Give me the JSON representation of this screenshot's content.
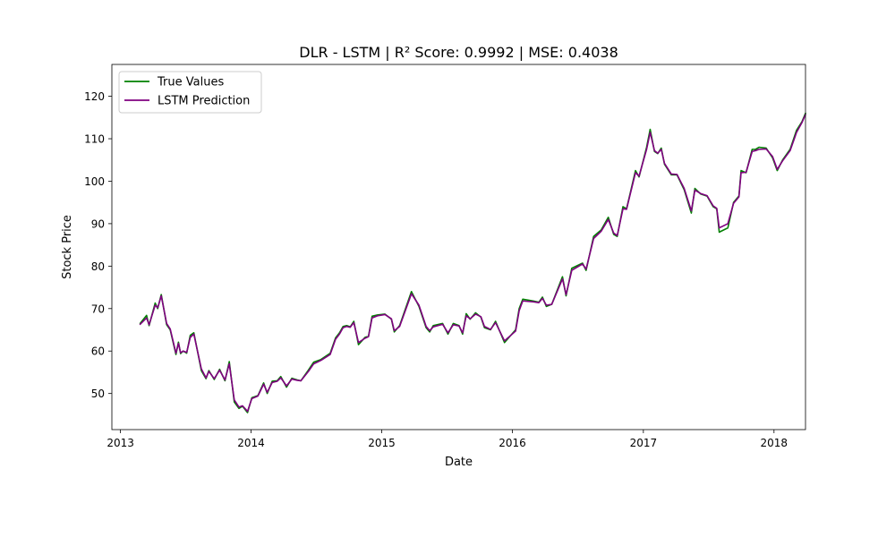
{
  "chart_data": {
    "type": "line",
    "title": "DLR - LSTM | R² Score: 0.9992 | MSE: 0.4038",
    "xlabel": "Date",
    "ylabel": "Stock Price",
    "xlim": [
      "2012-12-08",
      "2018-03-30"
    ],
    "ylim": [
      41.5,
      127.5
    ],
    "x_ticks": [
      "2013",
      "2014",
      "2015",
      "2016",
      "2017",
      "2018"
    ],
    "y_ticks": [
      50,
      60,
      70,
      80,
      90,
      100,
      110,
      120
    ],
    "grid": false,
    "legend": "top-left",
    "colors": {
      "true_values": "#008000",
      "lstm_prediction": "#800080"
    },
    "series": [
      {
        "name": "True Values",
        "color": "#008000",
        "points": [
          [
            "2013-02-25",
            66.5
          ],
          [
            "2013-03-15",
            68.4
          ],
          [
            "2013-03-22",
            66.0
          ],
          [
            "2013-04-08",
            71.3
          ],
          [
            "2013-04-15",
            70.0
          ],
          [
            "2013-04-25",
            73.3
          ],
          [
            "2013-05-10",
            66.2
          ],
          [
            "2013-05-20",
            65.0
          ],
          [
            "2013-06-05",
            59.2
          ],
          [
            "2013-06-12",
            62.1
          ],
          [
            "2013-06-18",
            59.4
          ],
          [
            "2013-06-25",
            60.0
          ],
          [
            "2013-07-05",
            59.5
          ],
          [
            "2013-07-15",
            63.7
          ],
          [
            "2013-07-25",
            64.3
          ],
          [
            "2013-08-15",
            55.4
          ],
          [
            "2013-08-28",
            53.5
          ],
          [
            "2013-09-05",
            55.4
          ],
          [
            "2013-09-20",
            53.3
          ],
          [
            "2013-10-05",
            55.7
          ],
          [
            "2013-10-20",
            53.0
          ],
          [
            "2013-11-01",
            57.5
          ],
          [
            "2013-11-15",
            48.0
          ],
          [
            "2013-11-28",
            46.5
          ],
          [
            "2013-12-08",
            47.0
          ],
          [
            "2013-12-22",
            45.5
          ],
          [
            "2014-01-03",
            49.0
          ],
          [
            "2014-01-20",
            49.5
          ],
          [
            "2014-02-05",
            52.5
          ],
          [
            "2014-02-15",
            50.0
          ],
          [
            "2014-03-01",
            52.9
          ],
          [
            "2014-03-15",
            53.0
          ],
          [
            "2014-03-25",
            54.0
          ],
          [
            "2014-04-10",
            51.5
          ],
          [
            "2014-04-25",
            53.6
          ],
          [
            "2014-05-10",
            53.2
          ],
          [
            "2014-05-20",
            53.0
          ],
          [
            "2014-06-10",
            55.5
          ],
          [
            "2014-06-25",
            57.4
          ],
          [
            "2014-07-15",
            58.0
          ],
          [
            "2014-08-10",
            59.5
          ],
          [
            "2014-08-25",
            63.1
          ],
          [
            "2014-09-05",
            64.3
          ],
          [
            "2014-09-15",
            65.8
          ],
          [
            "2014-09-25",
            66.0
          ],
          [
            "2014-10-05",
            65.7
          ],
          [
            "2014-10-15",
            67.0
          ],
          [
            "2014-10-28",
            61.5
          ],
          [
            "2014-11-15",
            63.2
          ],
          [
            "2014-11-25",
            63.5
          ],
          [
            "2014-12-05",
            68.2
          ],
          [
            "2014-12-20",
            68.5
          ],
          [
            "2015-01-10",
            68.7
          ],
          [
            "2015-01-28",
            67.5
          ],
          [
            "2015-02-05",
            64.5
          ],
          [
            "2015-02-20",
            66.0
          ],
          [
            "2015-03-25",
            74.0
          ],
          [
            "2015-04-15",
            70.5
          ],
          [
            "2015-05-05",
            65.5
          ],
          [
            "2015-05-15",
            64.5
          ],
          [
            "2015-05-25",
            66.0
          ],
          [
            "2015-06-20",
            66.5
          ],
          [
            "2015-07-05",
            64.0
          ],
          [
            "2015-07-20",
            66.5
          ],
          [
            "2015-08-05",
            66.0
          ],
          [
            "2015-08-15",
            64.0
          ],
          [
            "2015-08-25",
            68.8
          ],
          [
            "2015-09-05",
            67.5
          ],
          [
            "2015-09-20",
            69.0
          ],
          [
            "2015-10-05",
            68.0
          ],
          [
            "2015-10-15",
            65.5
          ],
          [
            "2015-11-01",
            65.0
          ],
          [
            "2015-11-15",
            67.0
          ],
          [
            "2015-12-10",
            62.0
          ],
          [
            "2016-01-10",
            65.0
          ],
          [
            "2016-01-20",
            70.0
          ],
          [
            "2016-01-30",
            72.2
          ],
          [
            "2016-02-28",
            71.8
          ],
          [
            "2016-03-15",
            71.5
          ],
          [
            "2016-03-25",
            72.7
          ],
          [
            "2016-04-05",
            70.5
          ],
          [
            "2016-04-20",
            71.0
          ],
          [
            "2016-05-20",
            77.5
          ],
          [
            "2016-05-30",
            73.0
          ],
          [
            "2016-06-15",
            79.5
          ],
          [
            "2016-07-15",
            80.7
          ],
          [
            "2016-07-25",
            79.0
          ],
          [
            "2016-08-15",
            87.0
          ],
          [
            "2016-09-05",
            88.5
          ],
          [
            "2016-09-25",
            91.5
          ],
          [
            "2016-10-10",
            87.5
          ],
          [
            "2016-10-20",
            87.0
          ],
          [
            "2016-11-05",
            94.0
          ],
          [
            "2016-11-15",
            93.5
          ],
          [
            "2016-12-10",
            102.5
          ],
          [
            "2016-12-20",
            101.0
          ],
          [
            "2017-01-10",
            108.0
          ],
          [
            "2017-01-20",
            112.2
          ],
          [
            "2017-02-01",
            107.0
          ],
          [
            "2017-02-10",
            106.5
          ],
          [
            "2017-02-20",
            107.8
          ],
          [
            "2017-03-01",
            104.0
          ],
          [
            "2017-03-20",
            101.5
          ],
          [
            "2017-04-05",
            101.5
          ],
          [
            "2017-04-25",
            98.0
          ],
          [
            "2017-05-15",
            92.5
          ],
          [
            "2017-05-25",
            98.3
          ],
          [
            "2017-06-10",
            97.0
          ],
          [
            "2017-06-28",
            96.5
          ],
          [
            "2017-07-15",
            94.0
          ],
          [
            "2017-07-25",
            93.5
          ],
          [
            "2017-08-01",
            88.0
          ],
          [
            "2017-08-25",
            89.0
          ],
          [
            "2017-09-10",
            95.0
          ],
          [
            "2017-09-25",
            96.5
          ],
          [
            "2017-10-01",
            102.5
          ],
          [
            "2017-10-15",
            102.0
          ],
          [
            "2017-11-01",
            107.5
          ],
          [
            "2017-11-10",
            107.5
          ],
          [
            "2017-11-20",
            108.0
          ],
          [
            "2017-12-10",
            107.8
          ],
          [
            "2017-12-28",
            105.5
          ],
          [
            "2018-01-10",
            102.5
          ],
          [
            "2018-01-25",
            105.0
          ],
          [
            "2018-02-15",
            107.5
          ],
          [
            "2018-03-05",
            112.0
          ],
          [
            "2018-03-20",
            114.0
          ],
          [
            "2018-03-30",
            116.0
          ]
        ]
      },
      {
        "name": "LSTM Prediction",
        "color": "#800080",
        "points": [
          [
            "2013-02-25",
            66.3
          ],
          [
            "2013-03-15",
            67.8
          ],
          [
            "2013-03-22",
            66.2
          ],
          [
            "2013-04-08",
            70.8
          ],
          [
            "2013-04-15",
            70.2
          ],
          [
            "2013-04-25",
            73.0
          ],
          [
            "2013-05-10",
            66.5
          ],
          [
            "2013-05-20",
            65.2
          ],
          [
            "2013-06-05",
            59.5
          ],
          [
            "2013-06-12",
            61.8
          ],
          [
            "2013-06-18",
            59.6
          ],
          [
            "2013-06-25",
            60.0
          ],
          [
            "2013-07-05",
            59.7
          ],
          [
            "2013-07-15",
            63.2
          ],
          [
            "2013-07-25",
            64.0
          ],
          [
            "2013-08-15",
            55.8
          ],
          [
            "2013-08-28",
            53.7
          ],
          [
            "2013-09-05",
            55.2
          ],
          [
            "2013-09-20",
            53.5
          ],
          [
            "2013-10-05",
            55.5
          ],
          [
            "2013-10-20",
            53.2
          ],
          [
            "2013-11-01",
            57.0
          ],
          [
            "2013-11-15",
            48.5
          ],
          [
            "2013-11-28",
            46.8
          ],
          [
            "2013-12-08",
            47.1
          ],
          [
            "2013-12-22",
            45.8
          ],
          [
            "2014-01-03",
            48.8
          ],
          [
            "2014-01-20",
            49.4
          ],
          [
            "2014-02-05",
            52.2
          ],
          [
            "2014-02-15",
            50.3
          ],
          [
            "2014-03-01",
            52.6
          ],
          [
            "2014-03-15",
            52.9
          ],
          [
            "2014-03-25",
            53.7
          ],
          [
            "2014-04-10",
            51.8
          ],
          [
            "2014-04-25",
            53.4
          ],
          [
            "2014-05-10",
            53.1
          ],
          [
            "2014-05-20",
            53.0
          ],
          [
            "2014-06-10",
            55.2
          ],
          [
            "2014-06-25",
            57.0
          ],
          [
            "2014-07-15",
            57.8
          ],
          [
            "2014-08-10",
            59.2
          ],
          [
            "2014-08-25",
            62.8
          ],
          [
            "2014-09-05",
            64.0
          ],
          [
            "2014-09-15",
            65.5
          ],
          [
            "2014-09-25",
            65.8
          ],
          [
            "2014-10-05",
            65.6
          ],
          [
            "2014-10-15",
            66.7
          ],
          [
            "2014-10-28",
            62.0
          ],
          [
            "2014-11-15",
            63.0
          ],
          [
            "2014-11-25",
            63.4
          ],
          [
            "2014-12-05",
            67.8
          ],
          [
            "2014-12-20",
            68.3
          ],
          [
            "2015-01-10",
            68.6
          ],
          [
            "2015-01-28",
            67.6
          ],
          [
            "2015-02-05",
            64.8
          ],
          [
            "2015-02-20",
            65.8
          ],
          [
            "2015-03-25",
            73.5
          ],
          [
            "2015-04-15",
            70.8
          ],
          [
            "2015-05-05",
            65.8
          ],
          [
            "2015-05-15",
            64.8
          ],
          [
            "2015-05-25",
            65.7
          ],
          [
            "2015-06-20",
            66.3
          ],
          [
            "2015-07-05",
            64.3
          ],
          [
            "2015-07-20",
            66.2
          ],
          [
            "2015-08-05",
            65.9
          ],
          [
            "2015-08-15",
            64.3
          ],
          [
            "2015-08-25",
            68.3
          ],
          [
            "2015-09-05",
            67.6
          ],
          [
            "2015-09-20",
            68.7
          ],
          [
            "2015-10-05",
            68.1
          ],
          [
            "2015-10-15",
            65.8
          ],
          [
            "2015-11-01",
            65.1
          ],
          [
            "2015-11-15",
            66.7
          ],
          [
            "2015-12-10",
            62.4
          ],
          [
            "2016-01-10",
            64.7
          ],
          [
            "2016-01-20",
            69.5
          ],
          [
            "2016-01-30",
            71.8
          ],
          [
            "2016-02-28",
            71.6
          ],
          [
            "2016-03-15",
            71.4
          ],
          [
            "2016-03-25",
            72.4
          ],
          [
            "2016-04-05",
            70.8
          ],
          [
            "2016-04-20",
            71.0
          ],
          [
            "2016-05-20",
            77.0
          ],
          [
            "2016-05-30",
            73.3
          ],
          [
            "2016-06-15",
            79.0
          ],
          [
            "2016-07-15",
            80.5
          ],
          [
            "2016-07-25",
            79.3
          ],
          [
            "2016-08-15",
            86.5
          ],
          [
            "2016-09-05",
            88.2
          ],
          [
            "2016-09-25",
            91.0
          ],
          [
            "2016-10-10",
            87.8
          ],
          [
            "2016-10-20",
            87.2
          ],
          [
            "2016-11-05",
            93.5
          ],
          [
            "2016-11-15",
            93.4
          ],
          [
            "2016-12-10",
            102.0
          ],
          [
            "2016-12-20",
            101.2
          ],
          [
            "2017-01-10",
            107.5
          ],
          [
            "2017-01-20",
            111.5
          ],
          [
            "2017-02-01",
            107.2
          ],
          [
            "2017-02-10",
            106.6
          ],
          [
            "2017-02-20",
            107.5
          ],
          [
            "2017-03-01",
            104.2
          ],
          [
            "2017-03-20",
            101.7
          ],
          [
            "2017-04-05",
            101.6
          ],
          [
            "2017-04-25",
            98.3
          ],
          [
            "2017-05-15",
            93.0
          ],
          [
            "2017-05-25",
            97.9
          ],
          [
            "2017-06-10",
            97.1
          ],
          [
            "2017-06-28",
            96.6
          ],
          [
            "2017-07-15",
            94.2
          ],
          [
            "2017-07-25",
            93.6
          ],
          [
            "2017-08-01",
            89.0
          ],
          [
            "2017-08-25",
            90.0
          ],
          [
            "2017-09-10",
            94.8
          ],
          [
            "2017-09-25",
            96.3
          ],
          [
            "2017-10-01",
            102.0
          ],
          [
            "2017-10-15",
            102.1
          ],
          [
            "2017-11-01",
            107.0
          ],
          [
            "2017-11-10",
            107.2
          ],
          [
            "2017-11-20",
            107.5
          ],
          [
            "2017-12-10",
            107.6
          ],
          [
            "2017-12-28",
            105.8
          ],
          [
            "2018-01-10",
            102.8
          ],
          [
            "2018-01-25",
            104.8
          ],
          [
            "2018-02-15",
            107.2
          ],
          [
            "2018-03-05",
            111.5
          ],
          [
            "2018-03-20",
            113.8
          ],
          [
            "2018-03-30",
            115.7
          ]
        ]
      }
    ]
  }
}
